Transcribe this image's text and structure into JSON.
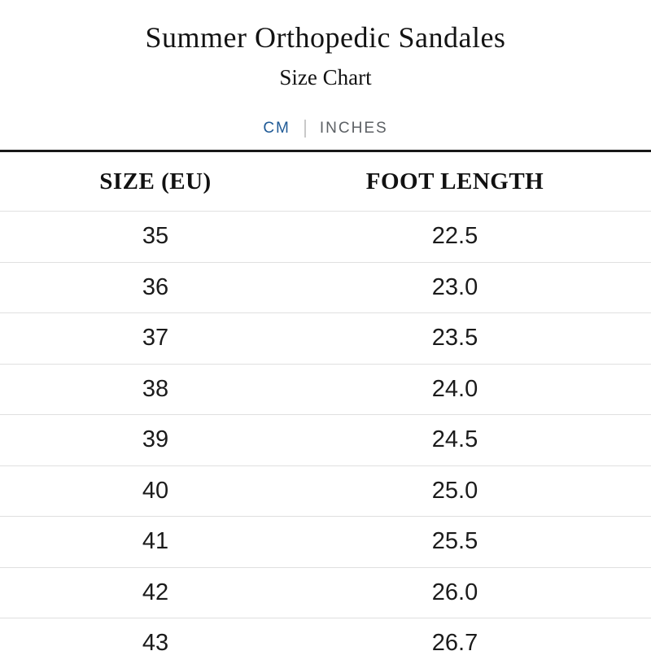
{
  "page": {
    "title": "Summer Orthopedic Sandales",
    "subtitle": "Size Chart"
  },
  "tabs": {
    "items": [
      {
        "label": "CM",
        "active": true
      },
      {
        "label": "INCHES",
        "active": false
      }
    ]
  },
  "table": {
    "headers": [
      "SIZE (EU)",
      "FOOT LENGTH"
    ],
    "rows": [
      {
        "size": "35",
        "foot_length": "22.5"
      },
      {
        "size": "36",
        "foot_length": "23.0"
      },
      {
        "size": "37",
        "foot_length": "23.5"
      },
      {
        "size": "38",
        "foot_length": "24.0"
      },
      {
        "size": "39",
        "foot_length": "24.5"
      },
      {
        "size": "40",
        "foot_length": "25.0"
      },
      {
        "size": "41",
        "foot_length": "25.5"
      },
      {
        "size": "42",
        "foot_length": "26.0"
      },
      {
        "size": "43",
        "foot_length": "26.7"
      }
    ]
  },
  "colors": {
    "active_tab": "#1f5a96",
    "inactive_tab": "#5d6165",
    "thick_rule": "#181818",
    "row_divider": "#e0e0e0",
    "text": "#161616"
  }
}
